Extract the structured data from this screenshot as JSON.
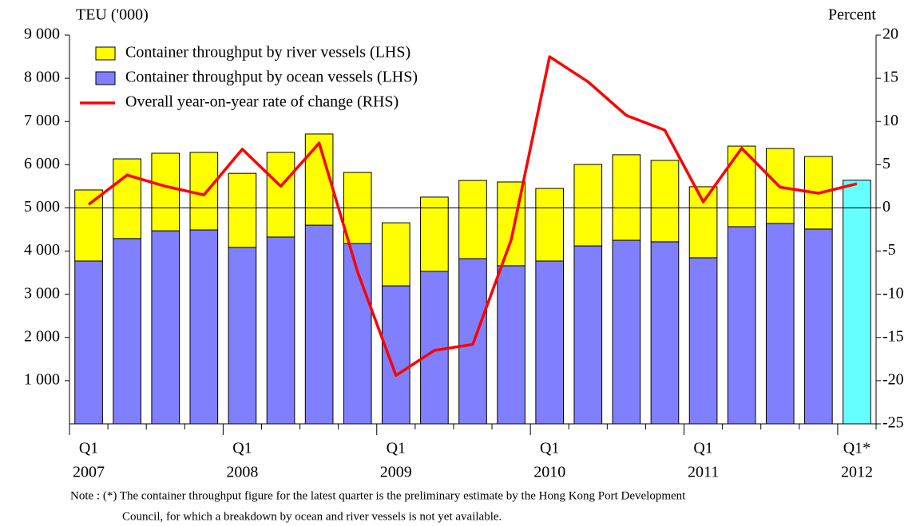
{
  "chart_data": {
    "type": "bar",
    "y_label": "TEU ('000)",
    "y2_label": "Percent",
    "categories": [
      "Q1",
      null,
      null,
      null,
      "Q1",
      null,
      null,
      null,
      "Q1",
      null,
      null,
      null,
      "Q1",
      null,
      null,
      null,
      "Q1",
      null,
      null,
      null,
      "Q1*"
    ],
    "years": [
      "2007",
      null,
      null,
      null,
      "2008",
      null,
      null,
      null,
      "2009",
      null,
      null,
      null,
      "2010",
      null,
      null,
      null,
      "2011",
      null,
      null,
      null,
      "2012"
    ],
    "series": [
      {
        "name": "Container throughput by ocean vessels (LHS)",
        "color": "#8080ff",
        "stack": true,
        "values": [
          3770,
          4290,
          4470,
          4490,
          4085,
          4325,
          4600,
          4175,
          3195,
          3530,
          3825,
          3660,
          3770,
          4120,
          4250,
          4215,
          3845,
          4565,
          4640,
          4510,
          null
        ]
      },
      {
        "name": "Container throughput by river vessels (LHS)",
        "color": "#ffff00",
        "stack": true,
        "values": [
          1645,
          1845,
          1795,
          1795,
          1715,
          1960,
          2110,
          1645,
          1460,
          1720,
          1810,
          1940,
          1680,
          1885,
          1980,
          1885,
          1645,
          1865,
          1735,
          1680,
          null
        ]
      },
      {
        "color": "#66ffff",
        "stack": true,
        "values": [
          null,
          null,
          null,
          null,
          null,
          null,
          null,
          null,
          null,
          null,
          null,
          null,
          null,
          null,
          null,
          null,
          null,
          null,
          null,
          null,
          5640
        ]
      },
      {
        "name": "Overall year-on-year rate of change (RHS)",
        "color": "#ff0000",
        "type": "line",
        "axis": "y2",
        "values": [
          0.4,
          3.8,
          2.5,
          1.5,
          6.8,
          2.5,
          7.5,
          -7.4,
          -19.4,
          -16.5,
          -15.8,
          -3.7,
          17.5,
          14.6,
          10.7,
          9.0,
          0.7,
          6.9,
          2.4,
          1.7,
          2.8
        ]
      }
    ],
    "legend_order": [
      1,
      0,
      3
    ],
    "ylim": [
      0,
      9000
    ],
    "yticks": [
      {
        "value": 1000,
        "label": "1 000"
      },
      {
        "value": 2000,
        "label": "2 000"
      },
      {
        "value": 3000,
        "label": "3 000"
      },
      {
        "value": 4000,
        "label": "4 000"
      },
      {
        "value": 5000,
        "label": "5 000"
      },
      {
        "value": 6000,
        "label": "6 000"
      },
      {
        "value": 7000,
        "label": "7 000"
      },
      {
        "value": 8000,
        "label": "8 000"
      },
      {
        "value": 9000,
        "label": "9 000"
      }
    ],
    "y2lim": [
      -25,
      20
    ],
    "y2ticks": [
      -25,
      -20,
      -15,
      -10,
      -5,
      0,
      5,
      10,
      15,
      20
    ],
    "note": [
      "Note : (*) The container throughput figure for the latest quarter is the preliminary estimate by the Hong Kong Port Development",
      "Council, for which a breakdown by ocean and river vessels is not yet available."
    ]
  }
}
